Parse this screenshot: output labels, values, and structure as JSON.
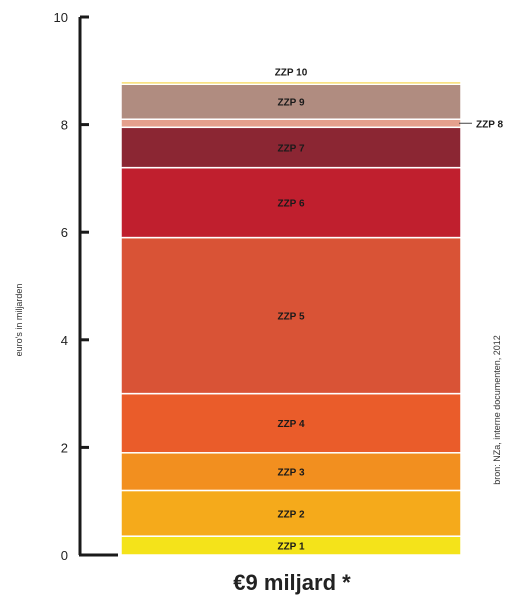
{
  "chart_data": {
    "type": "bar",
    "stacked": true,
    "ylabel": "euro's in miljarden",
    "ylim": [
      0,
      10
    ],
    "yticks": [
      "0",
      "2",
      "4",
      "6",
      "8",
      "10"
    ],
    "total_label": "€9 miljard *",
    "source": "bron: NZa, interne documenten, 2012",
    "segments": [
      {
        "name": "ZZP 1",
        "value": 0.35,
        "color": "#f4e31a"
      },
      {
        "name": "ZZP 2",
        "value": 0.85,
        "color": "#f5aa1b"
      },
      {
        "name": "ZZP 3",
        "value": 0.7,
        "color": "#f28f1f"
      },
      {
        "name": "ZZP 4",
        "value": 1.1,
        "color": "#ea5c2a"
      },
      {
        "name": "ZZP 5",
        "value": 2.9,
        "color": "#d95336"
      },
      {
        "name": "ZZP 6",
        "value": 1.3,
        "color": "#c01f2e"
      },
      {
        "name": "ZZP 7",
        "value": 0.75,
        "color": "#8b2633"
      },
      {
        "name": "ZZP 8",
        "value": 0.15,
        "color": "#e4a08d"
      },
      {
        "name": "ZZP 9",
        "value": 0.65,
        "color": "#b08c80"
      },
      {
        "name": "ZZP 10",
        "value": 0.05,
        "color": "#f6d44d"
      }
    ]
  }
}
